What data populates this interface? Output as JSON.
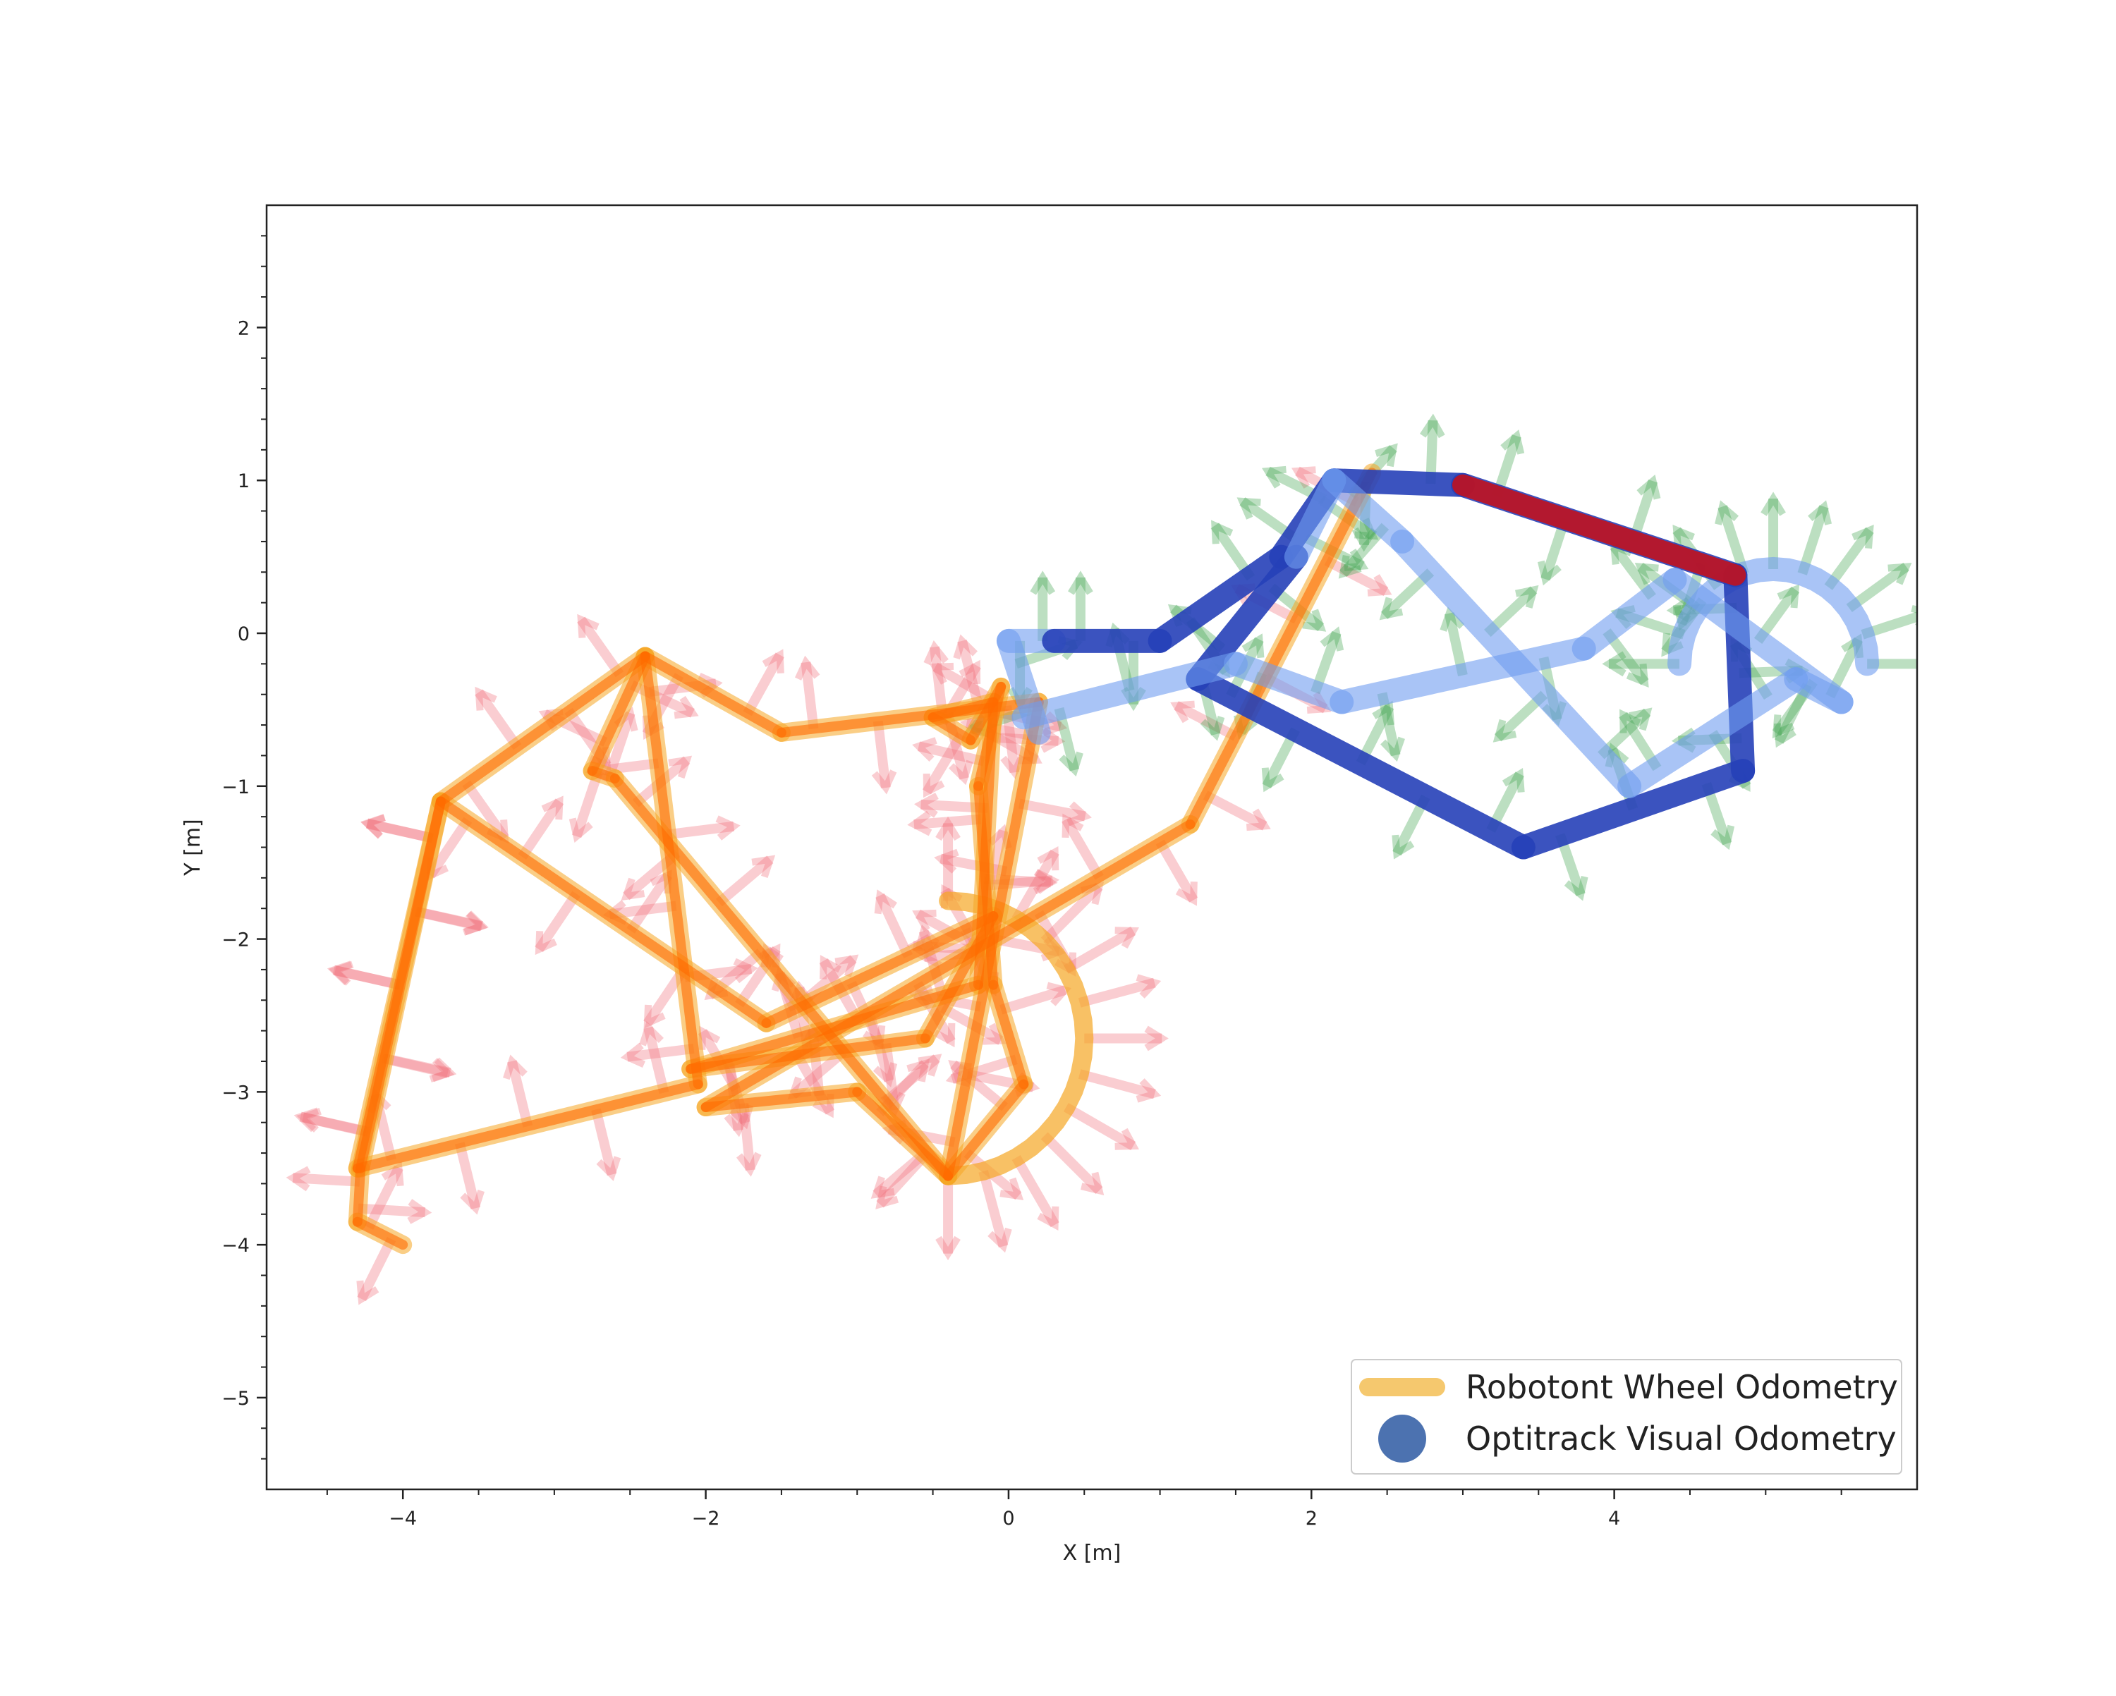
{
  "chart_data": {
    "type": "line",
    "xlabel": "X [m]",
    "ylabel": "Y [m]",
    "xlim": [
      -4.9,
      6.0
    ],
    "ylim": [
      -5.6,
      2.8
    ],
    "x_ticks": [
      -4,
      -2,
      0,
      2,
      4
    ],
    "y_ticks": [
      2,
      1,
      0,
      -1,
      -2,
      -3,
      -4,
      -5
    ],
    "x_tick_labels": [
      "−4",
      "−2",
      "0",
      "2",
      "4"
    ],
    "y_tick_labels": [
      "2",
      "1",
      "0",
      "−1",
      "−2",
      "−3",
      "−4",
      "−5"
    ],
    "grid": false,
    "legend_position": "lower-right",
    "colors": {
      "wheel_line": "#f5a623",
      "wheel_path": "#ff6a00",
      "wheel_arrows": "#f2707b",
      "optitrack_light": "#6f9cf0",
      "optitrack_dark": "#2640b8",
      "optitrack_segment": "#c1121f",
      "optitrack_arrows": "#3fa34d",
      "legend_marker": "#4c72b0"
    },
    "series": [
      {
        "name": "Robotont Wheel Odometry",
        "x": [
          -4.0,
          -4.3,
          -4.28,
          -3.75,
          -2.4,
          -2.05,
          -4.3,
          -3.75,
          -1.6,
          -0.1,
          -0.55,
          -2.1,
          -0.2,
          -0.1,
          -0.5,
          -0.25,
          -0.05,
          -0.2,
          -0.1,
          0.1,
          -0.4,
          -2.6,
          -2.75,
          -2.4,
          -1.5,
          0.2,
          -0.4,
          -1.0,
          -2.0,
          1.2,
          2.4
        ],
        "y": [
          -4.0,
          -3.85,
          -3.5,
          -1.1,
          -0.15,
          -2.95,
          -3.5,
          -1.1,
          -2.55,
          -1.85,
          -2.65,
          -2.85,
          -2.3,
          -0.45,
          -0.55,
          -0.7,
          -0.35,
          -1.0,
          -2.3,
          -2.95,
          -3.55,
          -0.95,
          -0.9,
          -0.15,
          -0.65,
          -0.45,
          -3.55,
          -3.0,
          -3.1,
          -1.25,
          1.05
        ]
      },
      {
        "name": "Optitrack Visual Odometry",
        "x": [
          0.2,
          0.0,
          0.3,
          1.0,
          1.8,
          2.15,
          3.0,
          4.8,
          4.85,
          3.4,
          1.25,
          1.9,
          2.15,
          2.6,
          4.1,
          5.2,
          5.5,
          4.4,
          3.8,
          2.2,
          1.5,
          0.1
        ],
        "y": [
          -0.65,
          -0.05,
          -0.05,
          -0.05,
          0.5,
          1.0,
          0.97,
          0.38,
          -0.9,
          -1.4,
          -0.3,
          0.5,
          1.0,
          0.6,
          -1.0,
          -0.3,
          -0.45,
          0.35,
          -0.1,
          -0.45,
          -0.2,
          -0.55
        ]
      }
    ],
    "legend": [
      {
        "label": "Robotont Wheel Odometry",
        "marker": "line",
        "color": "#f5c86e"
      },
      {
        "label": "Optitrack Visual Odometry",
        "marker": "circle",
        "color": "#4c72b0"
      }
    ]
  }
}
